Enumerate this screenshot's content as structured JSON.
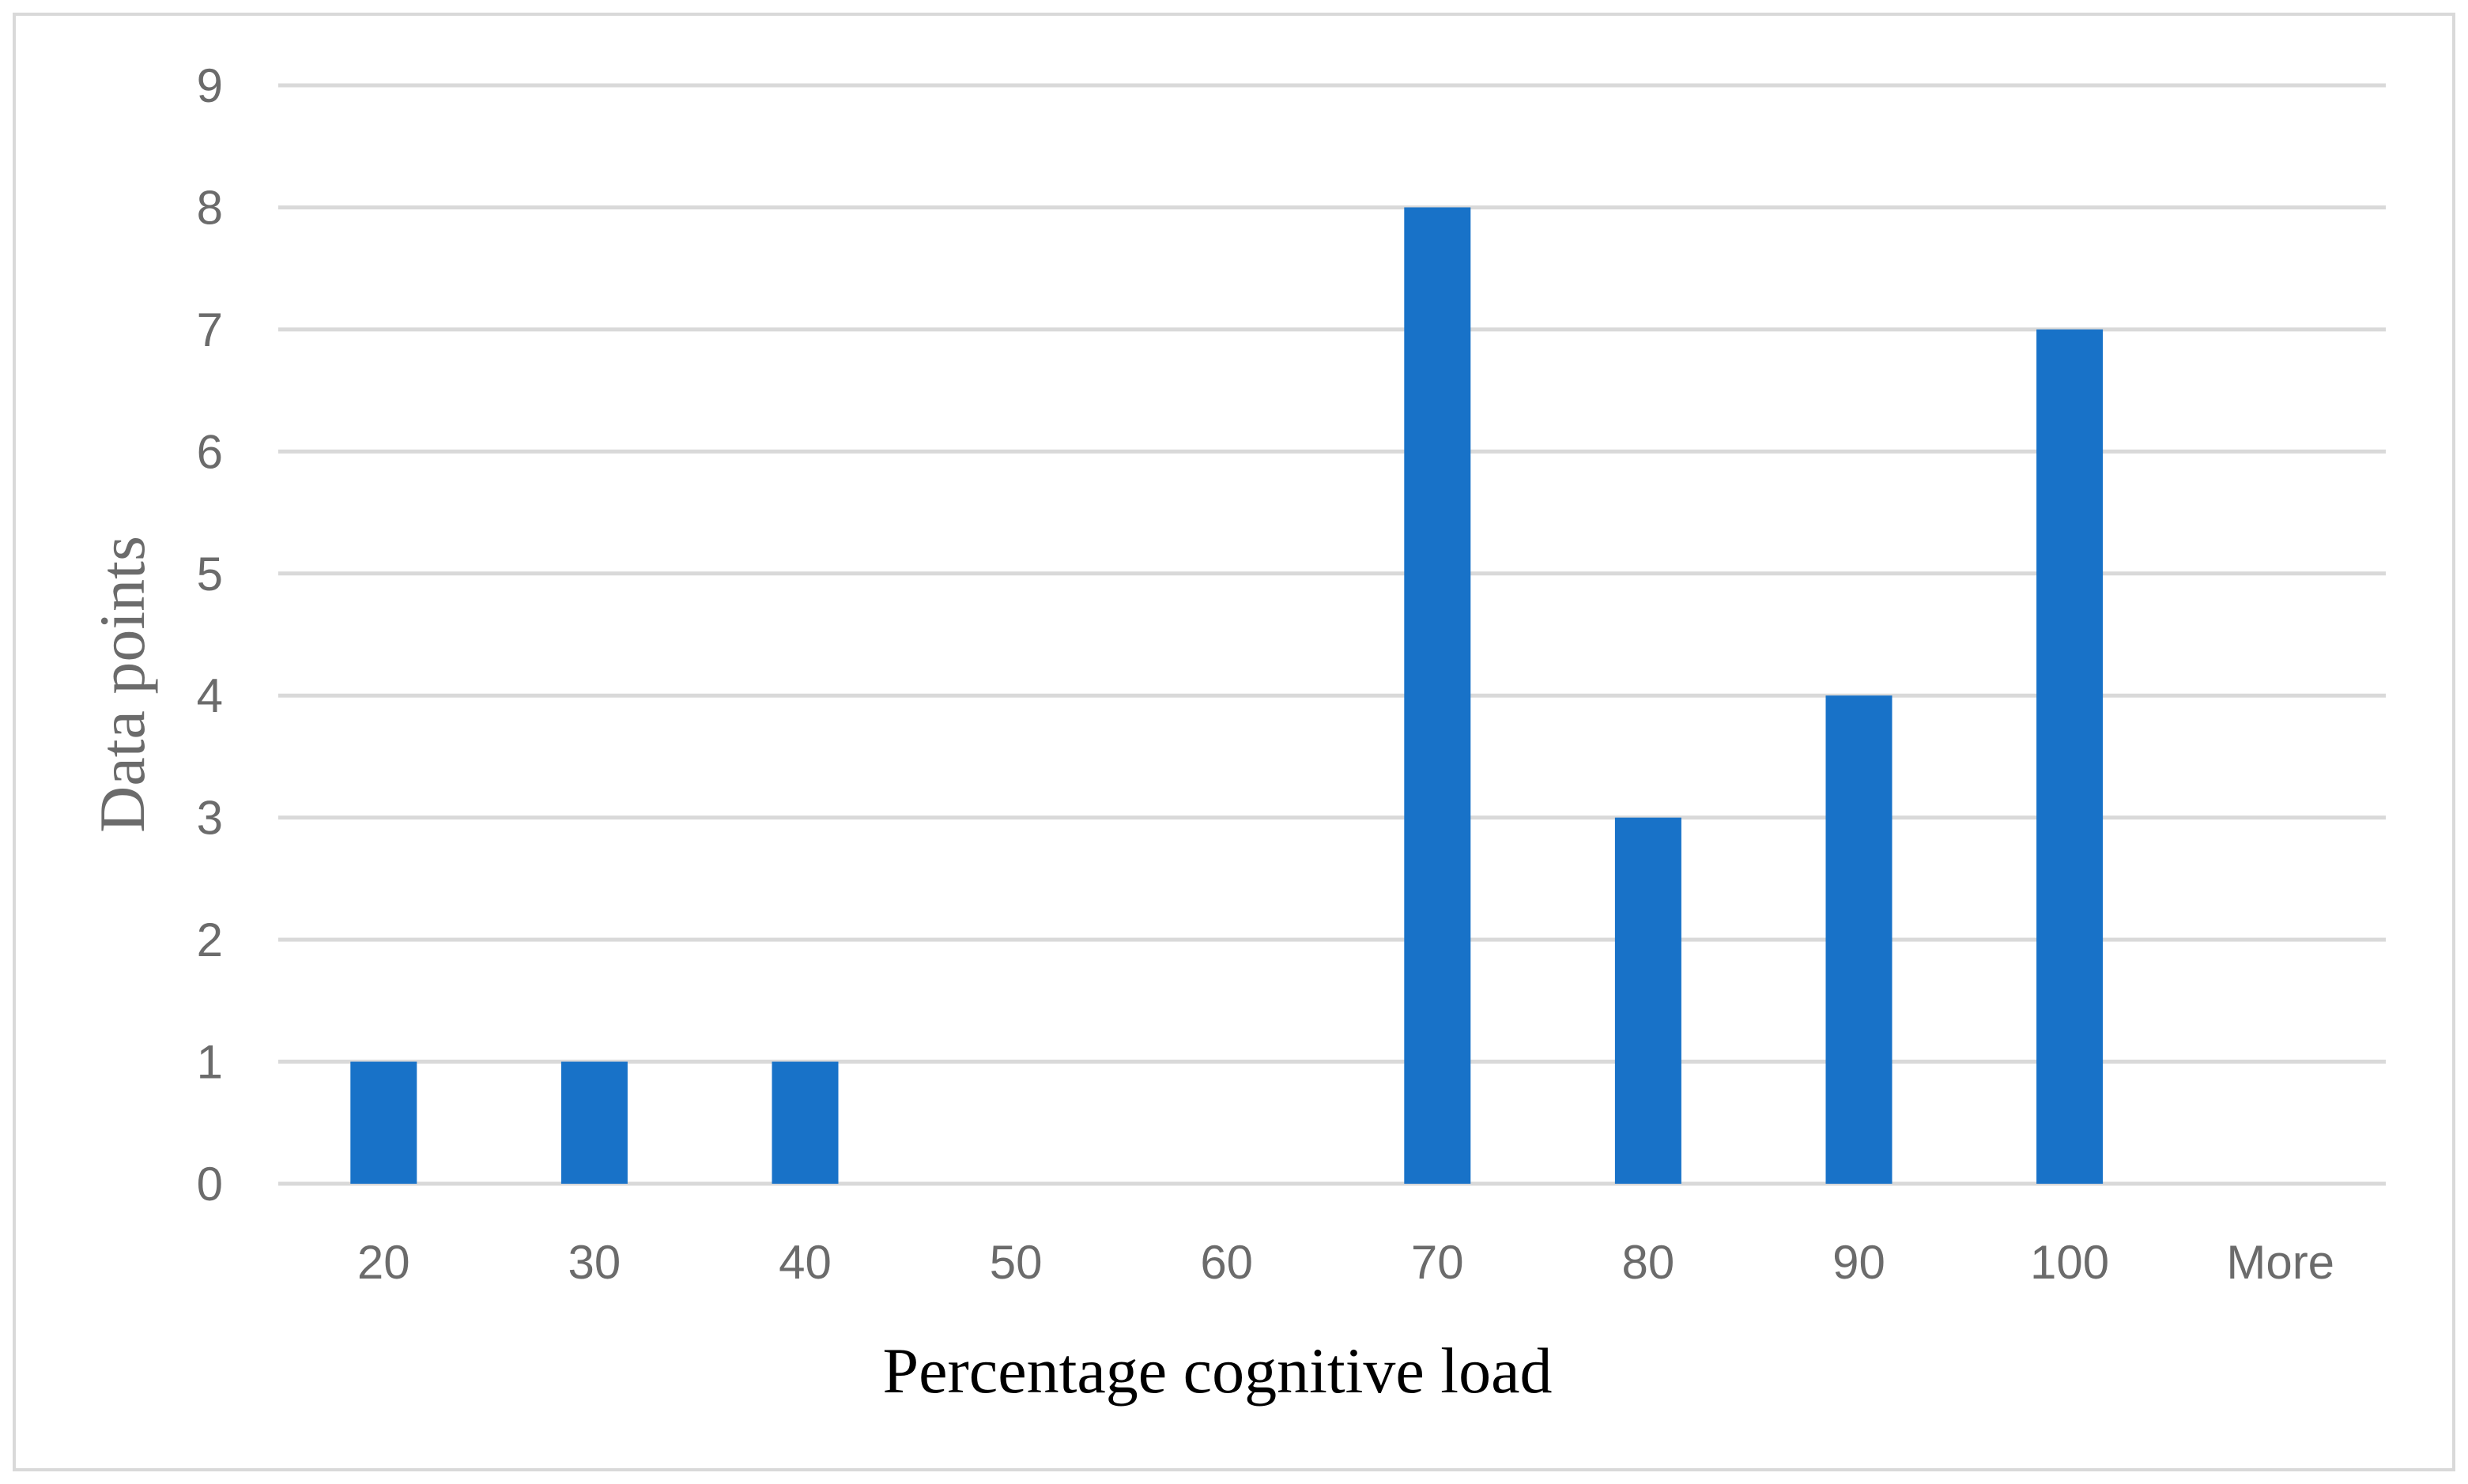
{
  "chart_data": {
    "type": "bar",
    "categories": [
      "20",
      "30",
      "40",
      "50",
      "60",
      "70",
      "80",
      "90",
      "100",
      "More"
    ],
    "values": [
      1,
      1,
      1,
      0,
      0,
      8,
      3,
      4,
      7,
      0
    ],
    "xlabel": "Percentage cognitive load",
    "ylabel": "Data points",
    "ylim": [
      0,
      9
    ],
    "yticks": [
      "0",
      "1",
      "2",
      "3",
      "4",
      "5",
      "6",
      "7",
      "8",
      "9"
    ],
    "grid": true,
    "legend": "none",
    "colors": {
      "bar": "#1872c8",
      "grid": "#d9d9d9",
      "tick_text": "#6b6b6b",
      "border": "#d9d9d9"
    }
  }
}
